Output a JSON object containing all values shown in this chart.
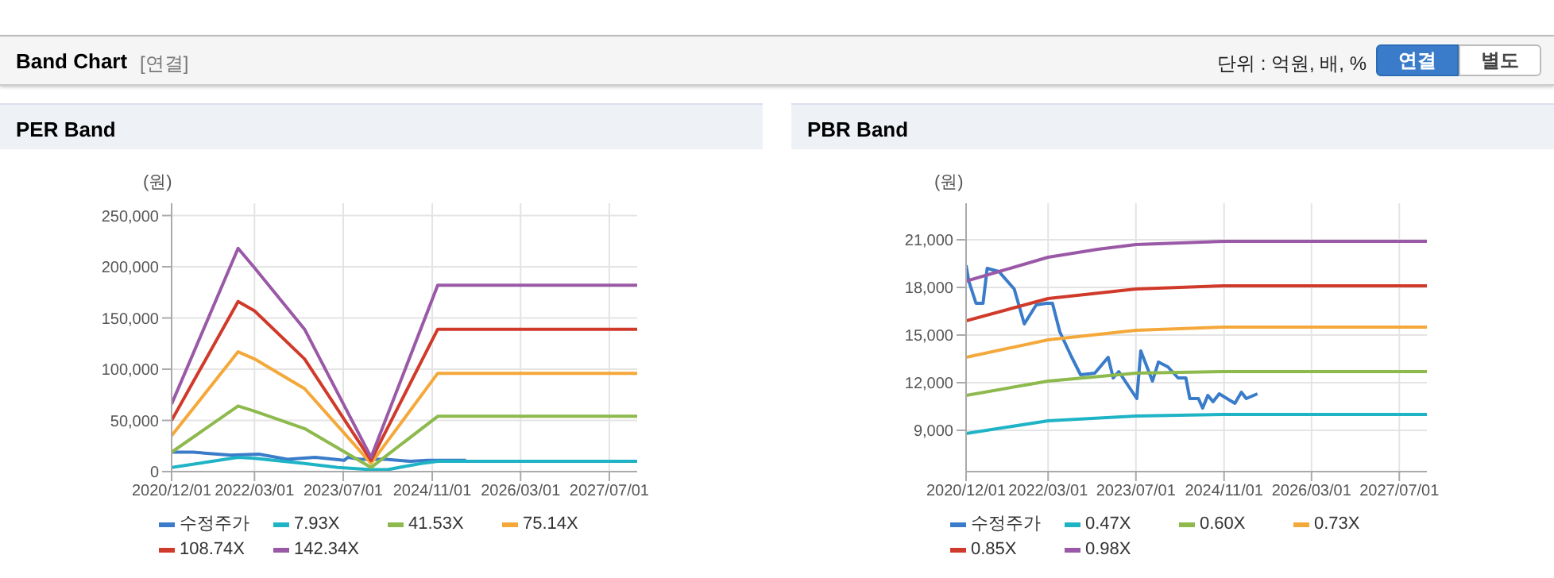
{
  "chart_data": [
    {
      "type": "other",
      "title": "Band Chart",
      "annotations": [
        "[연결]",
        "단위 : 억원, 배, %",
        "연결",
        "별도"
      ]
    },
    {
      "type": "line",
      "title": "PER Band",
      "ylabel": "(원)",
      "grid": true,
      "legend": "bottom",
      "marker": "none",
      "line_style": "solid",
      "xlim": [
        "2020-12-01",
        "2027-12-01"
      ],
      "xticks": [
        {
          "value": "2020-12-01",
          "label": "2020/12/01"
        },
        {
          "value": "2022-03-01",
          "label": "2022/03/01"
        },
        {
          "value": "2023-07-01",
          "label": "2023/07/01"
        },
        {
          "value": "2024-11-01",
          "label": "2024/11/01"
        },
        {
          "value": "2026-03-01",
          "label": "2026/03/01"
        },
        {
          "value": "2027-07-01",
          "label": "2027/07/01"
        }
      ],
      "ylim": [
        0,
        262000
      ],
      "yticks": [
        0,
        {
          "value": 50000,
          "label": "50,000"
        },
        {
          "value": 100000,
          "label": "100,000"
        },
        {
          "value": 150000,
          "label": "150,000"
        },
        {
          "value": 200000,
          "label": "200,000"
        },
        {
          "value": 250000,
          "label": "250,000"
        }
      ],
      "series": [
        {
          "name": "수정주가",
          "color": "#3a7cc9",
          "x": [
            "2020-12-01",
            "2021-03-28",
            "2021-10-20",
            "2022-03-25",
            "2022-08-28",
            "2023-01-28",
            "2023-07-06",
            "2023-07-28",
            "2023-10-01",
            "2024-02-20",
            "2024-07-05",
            "2024-10-05",
            "2025-05-05"
          ],
          "values": [
            19000,
            19000,
            16000,
            17000,
            12000,
            14000,
            11000,
            14000,
            12000,
            12000,
            10000,
            11000,
            11000
          ]
        },
        {
          "name": "7.93X",
          "color": "#1fb3c6",
          "x": [
            "2020-12-01",
            "2021-12-01",
            "2022-03-01",
            "2022-12-01",
            "2023-06-01",
            "2023-12-01",
            "2024-03-01",
            "2024-09-01",
            "2024-12-01",
            "2027-12-01"
          ],
          "values": [
            4000,
            14000,
            13000,
            8000,
            4000,
            2000,
            2000,
            8000,
            10000,
            10000
          ]
        },
        {
          "name": "41.53X",
          "color": "#8db94d",
          "x": [
            "2020-12-01",
            "2021-12-01",
            "2022-03-01",
            "2022-12-01",
            "2023-12-01",
            "2024-12-01",
            "2027-12-01"
          ],
          "values": [
            19000,
            64000,
            59000,
            42000,
            4000,
            54000,
            54000
          ]
        },
        {
          "name": "75.14X",
          "color": "#f5a83a",
          "x": [
            "2020-12-01",
            "2021-12-01",
            "2022-03-01",
            "2022-12-01",
            "2023-12-01",
            "2024-12-01",
            "2027-12-01"
          ],
          "values": [
            35000,
            117000,
            110000,
            81000,
            8000,
            96000,
            96000
          ]
        },
        {
          "name": "108.74X",
          "color": "#d03a2a",
          "x": [
            "2020-12-01",
            "2021-12-01",
            "2022-03-01",
            "2022-12-01",
            "2023-12-01",
            "2024-12-01",
            "2027-12-01"
          ],
          "values": [
            50000,
            166000,
            157000,
            110000,
            11000,
            139000,
            139000
          ]
        },
        {
          "name": "142.34X",
          "color": "#9a59a6",
          "x": [
            "2020-12-01",
            "2021-12-01",
            "2022-03-01",
            "2022-12-01",
            "2023-12-01",
            "2024-12-01",
            "2027-12-01"
          ],
          "values": [
            66000,
            218000,
            199000,
            139000,
            14000,
            182000,
            182000
          ]
        }
      ]
    },
    {
      "type": "line",
      "title": "PBR Band",
      "ylabel": "(원)",
      "grid": true,
      "legend": "bottom",
      "marker": "none",
      "line_style": "solid",
      "xlim": [
        "2020-12-01",
        "2027-12-01"
      ],
      "xticks": [
        {
          "value": "2020-12-01",
          "label": "2020/12/01"
        },
        {
          "value": "2022-03-01",
          "label": "2022/03/01"
        },
        {
          "value": "2023-07-01",
          "label": "2023/07/01"
        },
        {
          "value": "2024-11-01",
          "label": "2024/11/01"
        },
        {
          "value": "2026-03-01",
          "label": "2026/03/01"
        },
        {
          "value": "2027-07-01",
          "label": "2027/07/01"
        }
      ],
      "ylim": [
        6400,
        23300
      ],
      "yticks": [
        {
          "value": 9000,
          "label": "9,000"
        },
        {
          "value": 12000,
          "label": "12,000"
        },
        {
          "value": 15000,
          "label": "15,000"
        },
        {
          "value": 18000,
          "label": "18,000"
        },
        {
          "value": 21000,
          "label": "21,000"
        }
      ],
      "series": [
        {
          "name": "수정주가",
          "color": "#3a7cc9",
          "x": [
            "2020-12-01",
            "2020-12-16",
            "2021-01-25",
            "2021-03-05",
            "2021-03-28",
            "2021-06-01",
            "2021-08-25",
            "2021-10-20",
            "2021-12-25",
            "2022-02-20",
            "2022-03-25",
            "2022-05-05",
            "2022-07-10",
            "2022-08-28",
            "2022-11-15",
            "2023-01-28",
            "2023-02-25",
            "2023-03-28",
            "2023-07-06",
            "2023-07-28",
            "2023-10-01",
            "2023-11-03",
            "2023-12-25",
            "2024-02-20",
            "2024-04-03",
            "2024-04-25",
            "2024-06-12",
            "2024-07-05",
            "2024-08-03",
            "2024-09-01",
            "2024-10-05",
            "2024-12-31",
            "2025-02-05",
            "2025-03-04",
            "2025-05-05"
          ],
          "values": [
            19400,
            18400,
            17000,
            17000,
            19200,
            19000,
            17900,
            15700,
            16900,
            17000,
            17000,
            15200,
            13600,
            12500,
            12600,
            13600,
            12300,
            12700,
            11000,
            14000,
            12100,
            13300,
            13000,
            12300,
            12300,
            11000,
            11000,
            10400,
            11200,
            10800,
            11300,
            10700,
            11400,
            11000,
            11300
          ]
        },
        {
          "name": "0.47X",
          "color": "#1fb3c6",
          "x": [
            "2020-12-01",
            "2022-03-01",
            "2023-07-01",
            "2024-11-01",
            "2027-12-01"
          ],
          "values": [
            8800,
            9600,
            9900,
            10000,
            10000
          ]
        },
        {
          "name": "0.60X",
          "color": "#8db94d",
          "x": [
            "2020-12-01",
            "2022-03-01",
            "2023-07-01",
            "2024-11-01",
            "2027-12-01"
          ],
          "values": [
            11200,
            12100,
            12600,
            12700,
            12700
          ]
        },
        {
          "name": "0.73X",
          "color": "#f5a83a",
          "x": [
            "2020-12-01",
            "2022-03-01",
            "2023-07-01",
            "2024-11-01",
            "2027-12-01"
          ],
          "values": [
            13600,
            14700,
            15300,
            15500,
            15500
          ]
        },
        {
          "name": "0.85X",
          "color": "#d03a2a",
          "x": [
            "2020-12-01",
            "2022-03-01",
            "2023-07-01",
            "2024-11-01",
            "2027-12-01"
          ],
          "values": [
            15900,
            17300,
            17900,
            18100,
            18100
          ]
        },
        {
          "name": "0.98X",
          "color": "#9a59a6",
          "x": [
            "2020-12-01",
            "2021-06-01",
            "2022-03-01",
            "2022-12-01",
            "2023-07-01",
            "2024-03-01",
            "2024-11-01",
            "2027-12-01"
          ],
          "values": [
            18400,
            19000,
            19900,
            20400,
            20700,
            20800,
            20900,
            20900
          ]
        }
      ]
    }
  ]
}
